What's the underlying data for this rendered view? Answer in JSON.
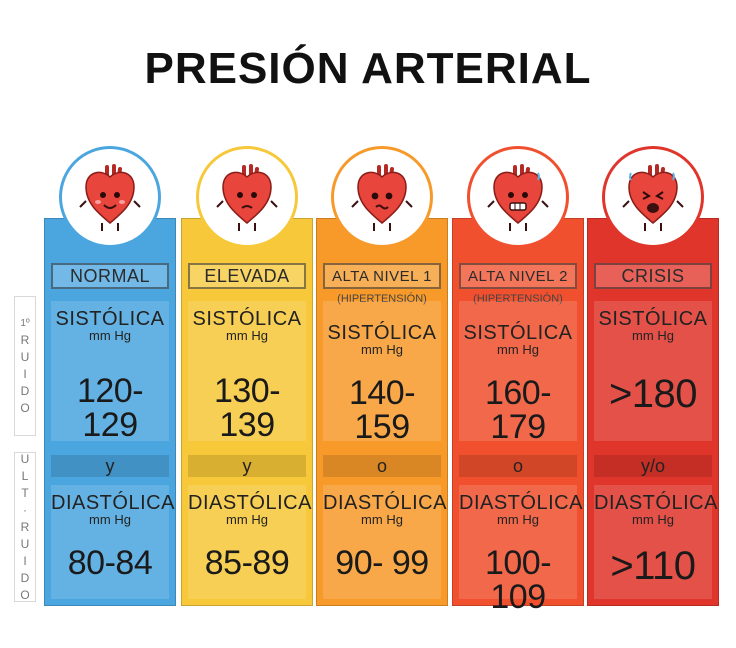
{
  "title": "PRESIÓN ARTERIAL",
  "side": {
    "top_lines": [
      "1º",
      "R",
      "U",
      "I",
      "D",
      "O"
    ],
    "bottom_lines": [
      "U",
      "L",
      "T",
      "·",
      "R",
      "U",
      "I",
      "D",
      "O"
    ]
  },
  "colors": {
    "normal": "#4ba6e0",
    "elevada": "#f7c83a",
    "alta1": "#f79a2a",
    "alta2": "#f0502e",
    "crisis": "#e0352b",
    "heart": "#e8453c"
  },
  "columns": [
    {
      "key": "normal",
      "header": "NORMAL",
      "sub": "",
      "sys_label": "SISTÓLICA",
      "sys_unit": "mm Hg",
      "sys_value": "120-129",
      "conj": "y",
      "dia_label": "DIASTÓLICA",
      "dia_unit": "mm Hg",
      "dia_value": "80-84",
      "face": "happy-heart-icon"
    },
    {
      "key": "elevada",
      "header": "ELEVADA",
      "sub": "",
      "sys_label": "SISTÓLICA",
      "sys_unit": "mm Hg",
      "sys_value": "130-139",
      "conj": "y",
      "dia_label": "DIASTÓLICA",
      "dia_unit": "mm Hg",
      "dia_value": "85-89",
      "face": "confused-heart-icon"
    },
    {
      "key": "alta1",
      "header": "ALTA NIVEL 1",
      "sub": "(HIPERTENSIÓN)",
      "sys_label": "SISTÓLICA",
      "sys_unit": "mm Hg",
      "sys_value": "140-159",
      "conj": "o",
      "dia_label": "DIASTÓLICA",
      "dia_unit": "mm Hg",
      "dia_value": "90- 99",
      "face": "worried-heart-icon"
    },
    {
      "key": "alta2",
      "header": "ALTA NIVEL 2",
      "sub": "(HIPERTENSIÓN)",
      "sys_label": "SISTÓLICA",
      "sys_unit": "mm Hg",
      "sys_value": "160-179",
      "conj": "o",
      "dia_label": "DIASTÓLICA",
      "dia_unit": "mm Hg",
      "dia_value": "100-109",
      "face": "grimacing-heart-icon"
    },
    {
      "key": "crisis",
      "header": "CRISIS",
      "sub": "",
      "sys_label": "SISTÓLICA",
      "sys_unit": "mm Hg",
      "sys_value": ">180",
      "conj": "y/o",
      "dia_label": "DIASTÓLICA",
      "dia_unit": "mm Hg",
      "dia_value": ">110",
      "face": "distressed-heart-icon"
    }
  ]
}
